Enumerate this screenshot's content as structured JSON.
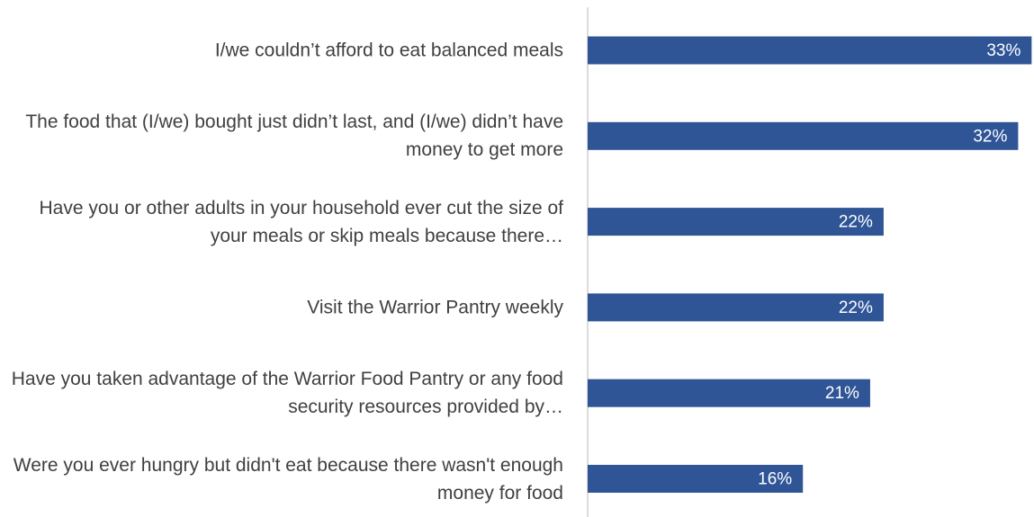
{
  "chart_data": {
    "type": "bar",
    "orientation": "horizontal",
    "categories": [
      "I/we couldn’t afford to eat balanced meals",
      "The food that (I/we) bought just didn’t last, and (I/we) didn’t have money to get more",
      "Have you or other adults in your household ever cut the size of your meals or skip meals because there…",
      "Visit the Warrior Pantry weekly",
      "Have you taken advantage of the Warrior Food Pantry or any food security resources provided by…",
      "Were you ever hungry but didn't eat because there wasn't enough money for food"
    ],
    "values": [
      33,
      32,
      22,
      22,
      21,
      16
    ],
    "value_labels": [
      "33%",
      "32%",
      "22%",
      "22%",
      "21%",
      "16%"
    ],
    "color": "#2f5597"
  }
}
